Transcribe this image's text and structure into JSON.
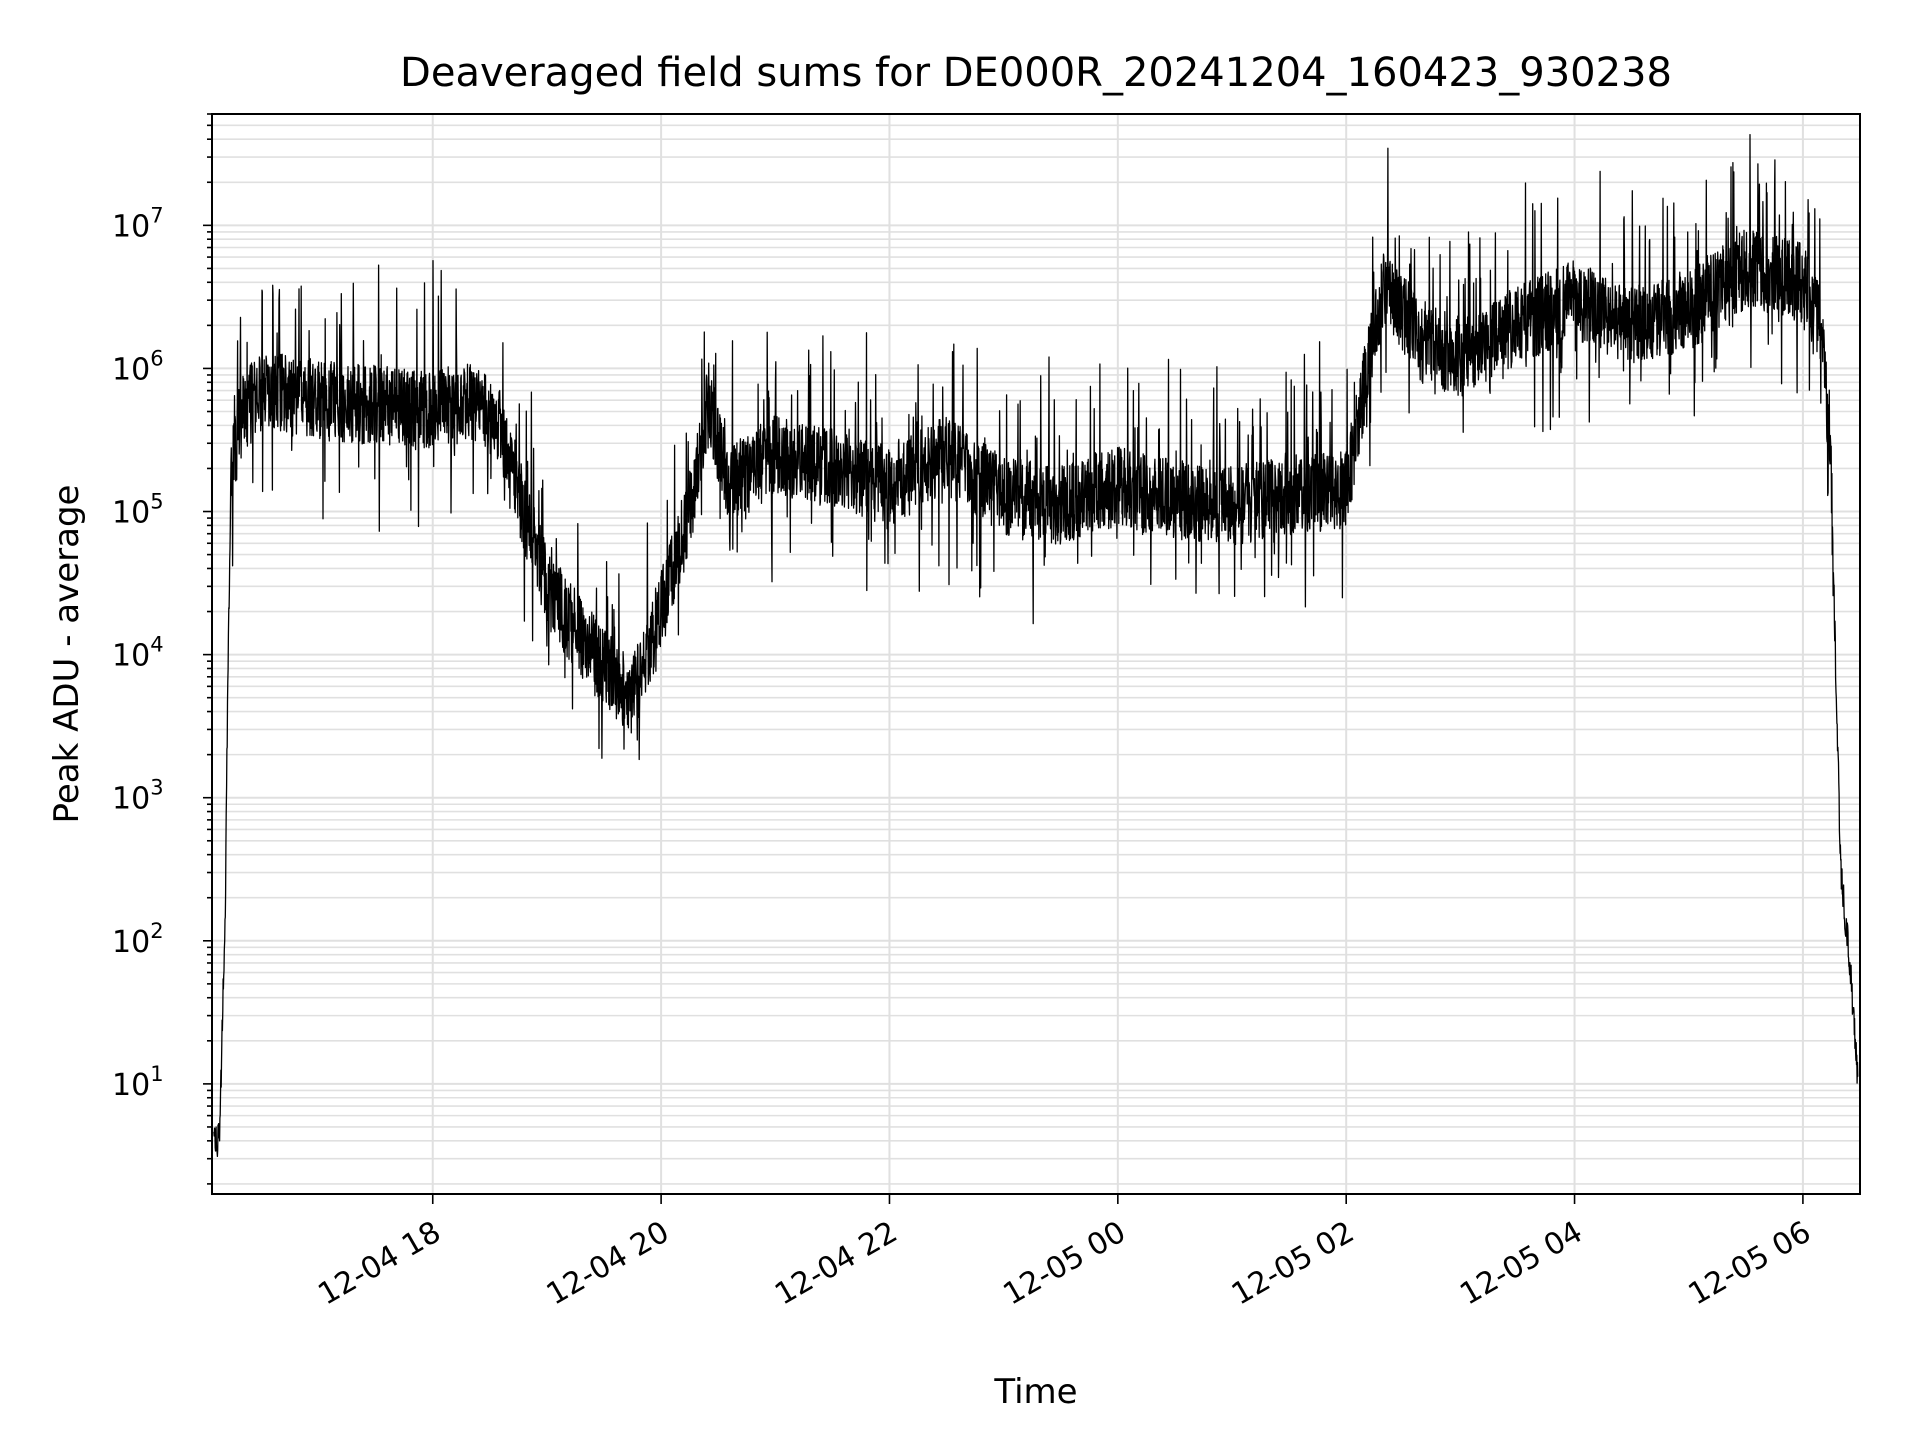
{
  "chart_data": {
    "type": "line",
    "title": "Deaveraged field sums for DE000R_20241204_160423_930238",
    "xlabel": "Time",
    "ylabel": "Peak ADU - average",
    "y_scale": "log",
    "ylim": [
      1.7,
      60000000
    ],
    "xlim": [
      "2024-12-04 16:04",
      "2024-12-05 06:30"
    ],
    "grid": true,
    "line_color": "#000000",
    "grid_color": "#e0e0e0",
    "x_ticks": [
      {
        "value": "2024-12-04 18:00",
        "label": "12-04 18"
      },
      {
        "value": "2024-12-04 20:00",
        "label": "12-04 20"
      },
      {
        "value": "2024-12-04 22:00",
        "label": "12-04 22"
      },
      {
        "value": "2024-12-05 00:00",
        "label": "12-05 00"
      },
      {
        "value": "2024-12-05 02:00",
        "label": "12-05 02"
      },
      {
        "value": "2024-12-05 04:00",
        "label": "12-05 04"
      },
      {
        "value": "2024-12-05 06:00",
        "label": "12-05 06"
      }
    ],
    "y_ticks": [
      {
        "value": 10,
        "base": "10",
        "exp": "1"
      },
      {
        "value": 100,
        "base": "10",
        "exp": "2"
      },
      {
        "value": 1000,
        "base": "10",
        "exp": "3"
      },
      {
        "value": 10000,
        "base": "10",
        "exp": "4"
      },
      {
        "value": 100000,
        "base": "10",
        "exp": "5"
      },
      {
        "value": 1000000,
        "base": "10",
        "exp": "6"
      },
      {
        "value": 10000000,
        "base": "10",
        "exp": "7"
      }
    ],
    "series": [
      {
        "trend": [
          [
            "2024-12-04 16:05",
            4
          ],
          [
            "2024-12-04 16:08",
            4
          ],
          [
            "2024-12-04 16:10",
            60
          ],
          [
            "2024-12-04 16:11",
            150
          ],
          [
            "2024-12-04 16:12",
            3000
          ],
          [
            "2024-12-04 16:14",
            200000
          ],
          [
            "2024-12-04 16:20",
            500000
          ],
          [
            "2024-12-04 16:30",
            700000
          ],
          [
            "2024-12-04 17:00",
            600000
          ],
          [
            "2024-12-04 17:30",
            550000
          ],
          [
            "2024-12-04 18:00",
            500000
          ],
          [
            "2024-12-04 18:20",
            600000
          ],
          [
            "2024-12-04 18:35",
            400000
          ],
          [
            "2024-12-04 18:50",
            80000
          ],
          [
            "2024-12-04 19:00",
            30000
          ],
          [
            "2024-12-04 19:15",
            15000
          ],
          [
            "2024-12-04 19:30",
            8000
          ],
          [
            "2024-12-04 19:45",
            5000
          ],
          [
            "2024-12-04 20:00",
            20000
          ],
          [
            "2024-12-04 20:15",
            100000
          ],
          [
            "2024-12-04 20:25",
            600000
          ],
          [
            "2024-12-04 20:35",
            150000
          ],
          [
            "2024-12-04 21:00",
            250000
          ],
          [
            "2024-12-04 21:30",
            200000
          ],
          [
            "2024-12-04 22:00",
            150000
          ],
          [
            "2024-12-04 22:30",
            250000
          ],
          [
            "2024-12-04 23:00",
            130000
          ],
          [
            "2024-12-04 23:30",
            110000
          ],
          [
            "2024-12-05 00:00",
            150000
          ],
          [
            "2024-12-05 00:30",
            120000
          ],
          [
            "2024-12-05 01:00",
            110000
          ],
          [
            "2024-12-05 01:30",
            130000
          ],
          [
            "2024-12-05 02:00",
            140000
          ],
          [
            "2024-12-05 02:10",
            800000
          ],
          [
            "2024-12-05 02:20",
            4000000
          ],
          [
            "2024-12-05 02:40",
            1500000
          ],
          [
            "2024-12-05 03:00",
            1200000
          ],
          [
            "2024-12-05 03:30",
            2000000
          ],
          [
            "2024-12-05 04:00",
            3000000
          ],
          [
            "2024-12-05 04:30",
            2000000
          ],
          [
            "2024-12-05 05:00",
            2500000
          ],
          [
            "2024-12-05 05:30",
            5000000
          ],
          [
            "2024-12-05 06:00",
            4000000
          ],
          [
            "2024-12-05 06:10",
            2000000
          ],
          [
            "2024-12-05 06:15",
            150000
          ],
          [
            "2024-12-05 06:18",
            3000
          ],
          [
            "2024-12-05 06:20",
            300
          ],
          [
            "2024-12-05 06:25",
            60
          ],
          [
            "2024-12-05 06:29",
            10
          ]
        ]
      }
    ]
  }
}
